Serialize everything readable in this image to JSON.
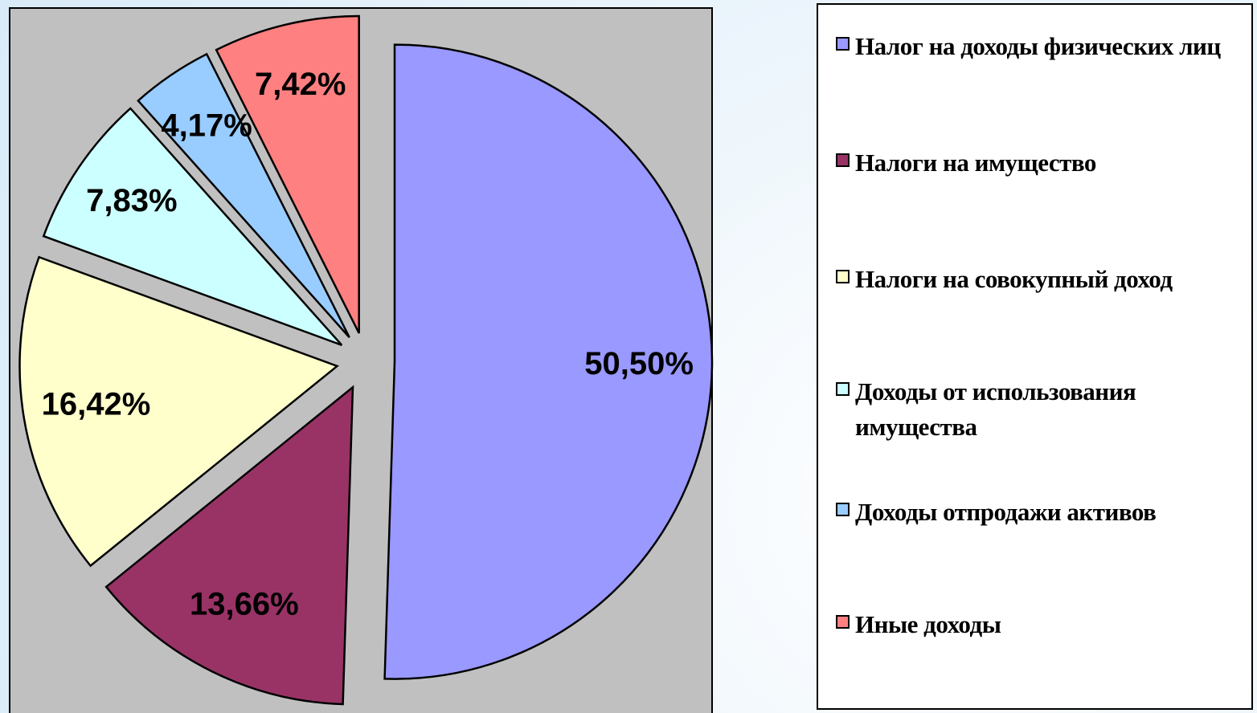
{
  "chart_data": {
    "type": "pie",
    "categories": [
      "Налог на доходы физических лиц",
      "Налоги на имущество",
      "Налоги на совокупный доход",
      "Доходы от использования имущества",
      "Доходы отпродажи активов",
      "Иные доходы"
    ],
    "values": [
      50.5,
      13.66,
      16.42,
      7.83,
      4.17,
      7.42
    ],
    "value_labels": [
      "50,50%",
      "13,66%",
      "16,42%",
      "7,83%",
      "4,17%",
      "7,42%"
    ],
    "colors": [
      "#9999ff",
      "#993366",
      "#ffffcc",
      "#ccffff",
      "#99ccff",
      "#ff8080"
    ],
    "legend": "right"
  }
}
